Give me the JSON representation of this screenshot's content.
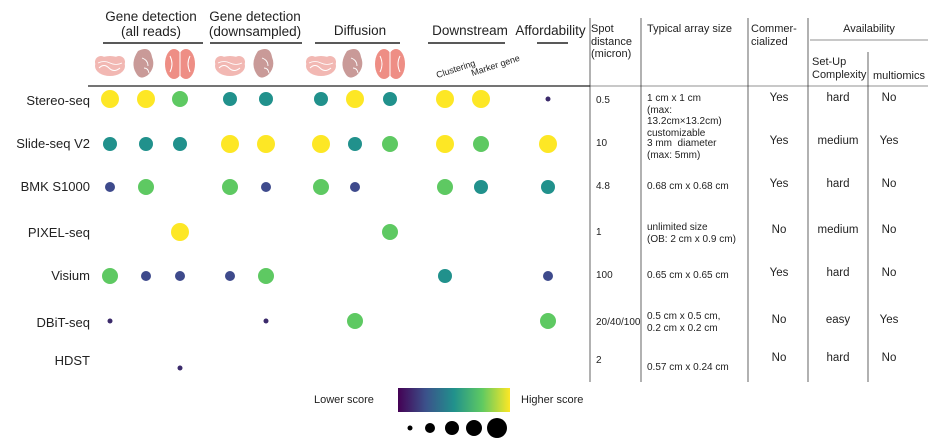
{
  "groups": {
    "gene_detection_all": "Gene detection\n(all reads)",
    "gene_detection_down": "Gene detection\n(downsampled)",
    "diffusion": "Diffusion",
    "downstream": "Downstream",
    "affordability": "Affordability",
    "clustering": "Clustering",
    "marker_gene": "Marker gene"
  },
  "headers": {
    "spot_distance": "Spot\ndistance\n(micron)",
    "array_size": "Typical array size",
    "commercialized": "Commer-\ncialized",
    "availability": "Availability",
    "setup_complexity": "Set-Up\nComplexity",
    "multiomics": "multiomics"
  },
  "colors": {
    "score_0": "#3b2a6b",
    "score_1": "#3e4a8c",
    "score_2": "#21918c",
    "score_3": "#5ec962",
    "score_4": "#fde725",
    "line": "#222222",
    "brain_pink": "#f2b8b3",
    "brain_mauve": "#c99a98",
    "brain_red": "#ee8e85"
  },
  "icons": [
    "brain-top-icon",
    "brain-side-icon",
    "brain-section-icon"
  ],
  "columns": [
    "gd_all_1",
    "gd_all_2",
    "gd_all_3",
    "gd_down_1",
    "gd_down_2",
    "diff_1",
    "diff_2",
    "diff_3",
    "clustering",
    "marker_gene",
    "affordability"
  ],
  "methods": [
    {
      "name": "Stereo-seq",
      "scores": [
        4,
        4,
        3,
        2,
        2,
        2,
        4,
        2,
        4,
        4,
        0
      ],
      "spot": "0.5",
      "array": "1 cm x 1 cm\n(max:\n13.2cm×13.2cm)\ncustomizable",
      "commercialized": "Yes",
      "complexity": "hard",
      "multiomics": "No"
    },
    {
      "name": "Slide-seq V2",
      "scores": [
        2,
        2,
        2,
        4,
        4,
        4,
        2,
        3,
        4,
        3,
        4
      ],
      "spot": "10",
      "array": "3 mm  diameter\n(max: 5mm)",
      "commercialized": "Yes",
      "complexity": "medium",
      "multiomics": "Yes"
    },
    {
      "name": "BMK S1000",
      "scores": [
        1,
        3,
        null,
        3,
        1,
        3,
        1,
        null,
        3,
        2,
        2
      ],
      "spot": "4.8",
      "array": "0.68 cm x 0.68 cm",
      "commercialized": "Yes",
      "complexity": "hard",
      "multiomics": "No"
    },
    {
      "name": "PIXEL-seq",
      "scores": [
        null,
        null,
        4,
        null,
        null,
        null,
        null,
        3,
        null,
        null,
        null
      ],
      "spot": "1",
      "array": "unlimited size\n(OB: 2 cm x 0.9 cm)",
      "commercialized": "No",
      "complexity": "medium",
      "multiomics": "No"
    },
    {
      "name": "Visium",
      "scores": [
        3,
        1,
        1,
        1,
        3,
        null,
        null,
        null,
        2,
        null,
        1
      ],
      "spot": "100",
      "array": "0.65 cm x 0.65 cm",
      "commercialized": "Yes",
      "complexity": "hard",
      "multiomics": "No"
    },
    {
      "name": "DBiT-seq",
      "scores": [
        0,
        null,
        null,
        null,
        0,
        null,
        3,
        null,
        null,
        null,
        3
      ],
      "spot": "20/40/100",
      "array": "0.5 cm x 0.5 cm,\n0.2 cm x 0.2 cm",
      "commercialized": "No",
      "complexity": "easy",
      "multiomics": "Yes"
    },
    {
      "name": "HDST",
      "scores": [
        null,
        null,
        0,
        null,
        null,
        null,
        null,
        null,
        null,
        null,
        null
      ],
      "spot": "2",
      "array": "0.57 cm x 0.24 cm",
      "commercialized": "No",
      "complexity": "hard",
      "multiomics": "No"
    }
  ],
  "legend": {
    "lower": "Lower score",
    "higher": "Higher score",
    "gradient": [
      "#440154",
      "#3b528b",
      "#21918c",
      "#5ec962",
      "#fde725"
    ],
    "sizes": [
      0,
      1,
      2,
      3,
      4
    ]
  }
}
